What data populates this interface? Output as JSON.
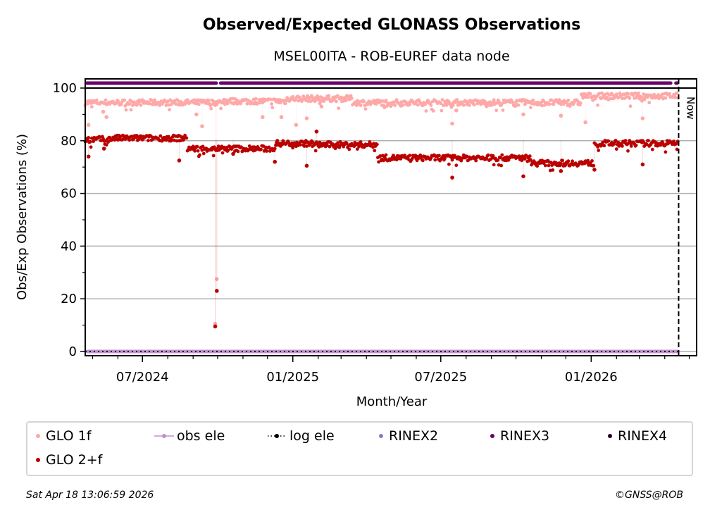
{
  "chart_data": {
    "type": "scatter",
    "title": "Observed/Expected GLONASS Observations",
    "subtitle": "MSEL00ITA - ROB-EUREF data node",
    "xlabel": "Month/Year",
    "ylabel": "Obs/Exp Observations (%)",
    "x_range": [
      "2024-04-22",
      "2026-05-10"
    ],
    "ylim": [
      0,
      100
    ],
    "yticks": [
      0,
      20,
      40,
      60,
      80,
      100
    ],
    "ytick_labels": [
      "0",
      "20",
      "40",
      "60",
      "80",
      "100"
    ],
    "xticks": [
      "2024-07-01",
      "2025-01-01",
      "2025-07-01",
      "2026-01-01"
    ],
    "xtick_labels": [
      "07/2024",
      "01/2025",
      "07/2025",
      "01/2026"
    ],
    "grid": "y-major",
    "now_marker": {
      "date": "2026-04-18",
      "label": "Now"
    },
    "legend_position": "bottom",
    "series": [
      {
        "name": "GLO 1f",
        "color": "#ffa8a8",
        "segments": [
          {
            "start": "2024-04-22",
            "end": "2024-10-05",
            "level": 94.5
          },
          {
            "start": "2024-10-05",
            "end": "2024-12-25",
            "level": 95
          },
          {
            "start": "2024-12-25",
            "end": "2025-03-15",
            "level": 96
          },
          {
            "start": "2025-03-15",
            "end": "2025-12-20",
            "level": 94.5
          },
          {
            "start": "2025-12-20",
            "end": "2026-04-18",
            "level": 97
          }
        ],
        "outliers": [
          [
            "2024-04-26",
            86
          ],
          [
            "2024-05-14",
            91
          ],
          [
            "2024-05-18",
            89
          ],
          [
            "2024-09-05",
            90
          ],
          [
            "2024-09-12",
            85.5
          ],
          [
            "2024-09-28",
            10.5
          ],
          [
            "2024-09-30",
            27.5
          ],
          [
            "2024-11-25",
            89
          ],
          [
            "2024-12-18",
            89
          ],
          [
            "2025-01-05",
            86
          ],
          [
            "2025-01-18",
            88.5
          ],
          [
            "2025-02-05",
            93
          ],
          [
            "2025-07-15",
            86.5
          ],
          [
            "2025-07-20",
            91.5
          ],
          [
            "2025-10-10",
            90
          ],
          [
            "2025-11-25",
            89.5
          ],
          [
            "2025-12-25",
            87
          ],
          [
            "2026-03-05",
            88.5
          ]
        ]
      },
      {
        "name": "GLO 2+f",
        "color": "#bb0000",
        "segments": [
          {
            "start": "2024-04-22",
            "end": "2024-05-25",
            "level": 80.5
          },
          {
            "start": "2024-05-25",
            "end": "2024-08-25",
            "level": 81
          },
          {
            "start": "2024-08-25",
            "end": "2024-12-10",
            "level": 77
          },
          {
            "start": "2024-12-10",
            "end": "2025-01-25",
            "level": 79
          },
          {
            "start": "2025-01-25",
            "end": "2025-04-15",
            "level": 78.5
          },
          {
            "start": "2025-04-15",
            "end": "2025-10-20",
            "level": 73.5
          },
          {
            "start": "2025-10-20",
            "end": "2026-01-05",
            "level": 71.5
          },
          {
            "start": "2026-01-05",
            "end": "2026-04-18",
            "level": 79
          }
        ],
        "outliers": [
          [
            "2024-04-26",
            74
          ],
          [
            "2024-05-15",
            77
          ],
          [
            "2024-08-15",
            72.5
          ],
          [
            "2024-09-28",
            9.5
          ],
          [
            "2024-09-30",
            23
          ],
          [
            "2024-10-20",
            75
          ],
          [
            "2024-12-10",
            72
          ],
          [
            "2025-01-18",
            70.5
          ],
          [
            "2025-01-30",
            83.5
          ],
          [
            "2025-07-15",
            66
          ],
          [
            "2025-10-10",
            66.5
          ],
          [
            "2025-11-25",
            68.5
          ],
          [
            "2026-01-05",
            69
          ],
          [
            "2026-03-05",
            71
          ]
        ]
      },
      {
        "name": "obs ele",
        "color": "#c090d0",
        "value": 0,
        "range": [
          "2024-04-22",
          "2026-04-18"
        ]
      },
      {
        "name": "log ele",
        "color": "#000000",
        "value": 0,
        "range": [
          "2024-04-22",
          "2026-04-18"
        ]
      },
      {
        "name": "RINEX3",
        "color": "#6a006a",
        "band": "top",
        "segments": [
          [
            "2024-04-22",
            "2024-10-01"
          ],
          [
            "2024-10-03",
            "2026-04-10"
          ],
          [
            "2026-04-13",
            "2026-04-18"
          ]
        ]
      }
    ],
    "legend": [
      {
        "label": "GLO 1f",
        "color": "#ffa8a8",
        "style": "dot"
      },
      {
        "label": "obs ele",
        "color": "#c090d0",
        "style": "line-dot"
      },
      {
        "label": "log ele",
        "color": "#000000",
        "style": "dotted-dot"
      },
      {
        "label": "RINEX2",
        "color": "#8080c0",
        "style": "dot"
      },
      {
        "label": "RINEX3",
        "color": "#6a006a",
        "style": "dot"
      },
      {
        "label": "RINEX4",
        "color": "#2a0028",
        "style": "dot"
      },
      {
        "label": "GLO 2+f",
        "color": "#bb0000",
        "style": "dot"
      }
    ]
  },
  "footer": {
    "timestamp": "Sat Apr 18 13:06:59 2026",
    "copyright": "©GNSS@ROB"
  }
}
